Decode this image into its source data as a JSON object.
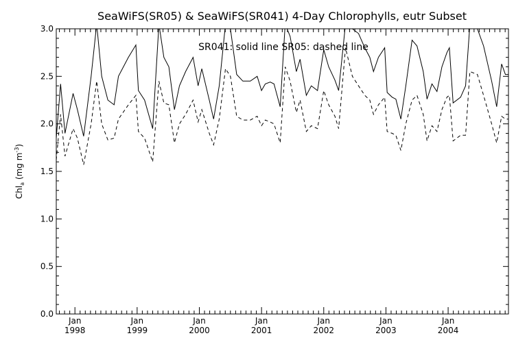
{
  "chart_data": {
    "type": "line",
    "title": "SeaWiFS(SR05) & SeaWiFS(SR041) 4-Day Chlorophylls, eutr Subset",
    "ylabel": "Chl_a (mg m^-3)",
    "ylabel_parts": {
      "base": "Chl",
      "sub": "a",
      "mid": " (mg m",
      "sup": "-3",
      "end": ")"
    },
    "annotation": "SR041: solid line   SR05: dashed line",
    "ylim": [
      0.0,
      3.0
    ],
    "xlim": [
      1997.7,
      2004.97
    ],
    "y_ticks": [
      {
        "value": 0.0,
        "label": "0.0"
      },
      {
        "value": 0.5,
        "label": "0.5"
      },
      {
        "value": 1.0,
        "label": "1.0"
      },
      {
        "value": 1.5,
        "label": "1.5"
      },
      {
        "value": 2.0,
        "label": "2.0"
      },
      {
        "value": 2.5,
        "label": "2.5"
      },
      {
        "value": 3.0,
        "label": "3.0"
      }
    ],
    "x_ticks": [
      {
        "value": 1998.0,
        "month": "Jan",
        "year": "1998"
      },
      {
        "value": 1999.0,
        "month": "Jan",
        "year": "1999"
      },
      {
        "value": 2000.0,
        "month": "Jan",
        "year": "2000"
      },
      {
        "value": 2001.0,
        "month": "Jan",
        "year": "2001"
      },
      {
        "value": 2002.0,
        "month": "Jan",
        "year": "2002"
      },
      {
        "value": 2003.0,
        "month": "Jan",
        "year": "2003"
      },
      {
        "value": 2004.0,
        "month": "Jan",
        "year": "2004"
      }
    ],
    "grid": false,
    "series": [
      {
        "name": "SR041",
        "style": "solid",
        "color": "#000000",
        "points": [
          [
            1997.7,
            1.85
          ],
          [
            1997.77,
            2.42
          ],
          [
            1997.84,
            1.9
          ],
          [
            1997.97,
            2.32
          ],
          [
            1998.04,
            2.15
          ],
          [
            1998.14,
            1.87
          ],
          [
            1998.26,
            2.5
          ],
          [
            1998.35,
            3.05
          ],
          [
            1998.43,
            2.5
          ],
          [
            1998.53,
            2.25
          ],
          [
            1998.63,
            2.2
          ],
          [
            1998.7,
            2.5
          ],
          [
            1998.86,
            2.7
          ],
          [
            1998.98,
            2.83
          ],
          [
            1999.02,
            2.35
          ],
          [
            1999.12,
            2.25
          ],
          [
            1999.25,
            1.95
          ],
          [
            1999.35,
            3.05
          ],
          [
            1999.43,
            2.7
          ],
          [
            1999.51,
            2.6
          ],
          [
            1999.6,
            2.15
          ],
          [
            1999.68,
            2.4
          ],
          [
            1999.78,
            2.55
          ],
          [
            1999.9,
            2.7
          ],
          [
            1999.98,
            2.4
          ],
          [
            2000.04,
            2.58
          ],
          [
            2000.16,
            2.25
          ],
          [
            2000.23,
            2.05
          ],
          [
            2000.32,
            2.4
          ],
          [
            2000.42,
            3.05
          ],
          [
            2000.5,
            3.0
          ],
          [
            2000.6,
            2.52
          ],
          [
            2000.7,
            2.45
          ],
          [
            2000.82,
            2.45
          ],
          [
            2000.93,
            2.5
          ],
          [
            2001.0,
            2.35
          ],
          [
            2001.06,
            2.42
          ],
          [
            2001.14,
            2.44
          ],
          [
            2001.2,
            2.42
          ],
          [
            2001.3,
            2.18
          ],
          [
            2001.38,
            3.05
          ],
          [
            2001.46,
            2.92
          ],
          [
            2001.56,
            2.55
          ],
          [
            2001.62,
            2.68
          ],
          [
            2001.72,
            2.3
          ],
          [
            2001.8,
            2.4
          ],
          [
            2001.9,
            2.35
          ],
          [
            2002.0,
            2.78
          ],
          [
            2002.08,
            2.6
          ],
          [
            2002.18,
            2.46
          ],
          [
            2002.24,
            2.35
          ],
          [
            2002.35,
            3.05
          ],
          [
            2002.46,
            3.0
          ],
          [
            2002.56,
            2.95
          ],
          [
            2002.66,
            2.8
          ],
          [
            2002.74,
            2.7
          ],
          [
            2002.8,
            2.55
          ],
          [
            2002.88,
            2.7
          ],
          [
            2002.98,
            2.8
          ],
          [
            2003.02,
            2.33
          ],
          [
            2003.1,
            2.28
          ],
          [
            2003.16,
            2.26
          ],
          [
            2003.24,
            2.05
          ],
          [
            2003.32,
            2.4
          ],
          [
            2003.42,
            2.88
          ],
          [
            2003.5,
            2.82
          ],
          [
            2003.6,
            2.55
          ],
          [
            2003.66,
            2.26
          ],
          [
            2003.74,
            2.42
          ],
          [
            2003.82,
            2.34
          ],
          [
            2003.9,
            2.6
          ],
          [
            2003.98,
            2.75
          ],
          [
            2004.02,
            2.8
          ],
          [
            2004.08,
            2.22
          ],
          [
            2004.2,
            2.28
          ],
          [
            2004.28,
            2.4
          ],
          [
            2004.35,
            3.05
          ],
          [
            2004.47,
            3.0
          ],
          [
            2004.57,
            2.82
          ],
          [
            2004.7,
            2.45
          ],
          [
            2004.78,
            2.18
          ],
          [
            2004.86,
            2.63
          ],
          [
            2004.92,
            2.52
          ],
          [
            2004.97,
            2.52
          ]
        ]
      },
      {
        "name": "SR05",
        "style": "dashed",
        "color": "#000000",
        "points": [
          [
            1997.7,
            1.62
          ],
          [
            1997.77,
            2.1
          ],
          [
            1997.84,
            1.66
          ],
          [
            1997.97,
            1.95
          ],
          [
            1998.04,
            1.85
          ],
          [
            1998.14,
            1.57
          ],
          [
            1998.26,
            2.0
          ],
          [
            1998.35,
            2.45
          ],
          [
            1998.43,
            2.0
          ],
          [
            1998.53,
            1.83
          ],
          [
            1998.63,
            1.85
          ],
          [
            1998.7,
            2.05
          ],
          [
            1998.86,
            2.2
          ],
          [
            1998.98,
            2.3
          ],
          [
            1999.02,
            1.92
          ],
          [
            1999.12,
            1.85
          ],
          [
            1999.25,
            1.6
          ],
          [
            1999.35,
            2.45
          ],
          [
            1999.43,
            2.22
          ],
          [
            1999.51,
            2.2
          ],
          [
            1999.6,
            1.8
          ],
          [
            1999.68,
            2.0
          ],
          [
            1999.78,
            2.1
          ],
          [
            1999.9,
            2.25
          ],
          [
            1999.98,
            2.02
          ],
          [
            2000.04,
            2.15
          ],
          [
            2000.16,
            1.9
          ],
          [
            2000.23,
            1.78
          ],
          [
            2000.32,
            2.05
          ],
          [
            2000.42,
            2.58
          ],
          [
            2000.5,
            2.5
          ],
          [
            2000.6,
            2.08
          ],
          [
            2000.7,
            2.04
          ],
          [
            2000.82,
            2.04
          ],
          [
            2000.93,
            2.08
          ],
          [
            2001.0,
            1.98
          ],
          [
            2001.06,
            2.04
          ],
          [
            2001.14,
            2.02
          ],
          [
            2001.2,
            2.0
          ],
          [
            2001.3,
            1.8
          ],
          [
            2001.38,
            2.6
          ],
          [
            2001.46,
            2.45
          ],
          [
            2001.56,
            2.12
          ],
          [
            2001.62,
            2.25
          ],
          [
            2001.72,
            1.92
          ],
          [
            2001.8,
            1.98
          ],
          [
            2001.9,
            1.95
          ],
          [
            2002.0,
            2.35
          ],
          [
            2002.08,
            2.2
          ],
          [
            2002.18,
            2.08
          ],
          [
            2002.24,
            1.95
          ],
          [
            2002.35,
            2.8
          ],
          [
            2002.46,
            2.5
          ],
          [
            2002.56,
            2.4
          ],
          [
            2002.66,
            2.3
          ],
          [
            2002.74,
            2.25
          ],
          [
            2002.8,
            2.1
          ],
          [
            2002.88,
            2.2
          ],
          [
            2002.98,
            2.28
          ],
          [
            2003.02,
            1.92
          ],
          [
            2003.1,
            1.9
          ],
          [
            2003.16,
            1.88
          ],
          [
            2003.24,
            1.72
          ],
          [
            2003.32,
            2.0
          ],
          [
            2003.42,
            2.25
          ],
          [
            2003.5,
            2.3
          ],
          [
            2003.6,
            2.1
          ],
          [
            2003.66,
            1.82
          ],
          [
            2003.74,
            1.98
          ],
          [
            2003.82,
            1.92
          ],
          [
            2003.9,
            2.15
          ],
          [
            2003.98,
            2.28
          ],
          [
            2004.02,
            2.3
          ],
          [
            2004.08,
            1.82
          ],
          [
            2004.2,
            1.88
          ],
          [
            2004.28,
            1.88
          ],
          [
            2004.35,
            2.55
          ],
          [
            2004.47,
            2.52
          ],
          [
            2004.57,
            2.3
          ],
          [
            2004.7,
            2.0
          ],
          [
            2004.78,
            1.8
          ],
          [
            2004.86,
            2.08
          ],
          [
            2004.92,
            2.05
          ],
          [
            2004.97,
            2.05
          ]
        ]
      }
    ]
  }
}
